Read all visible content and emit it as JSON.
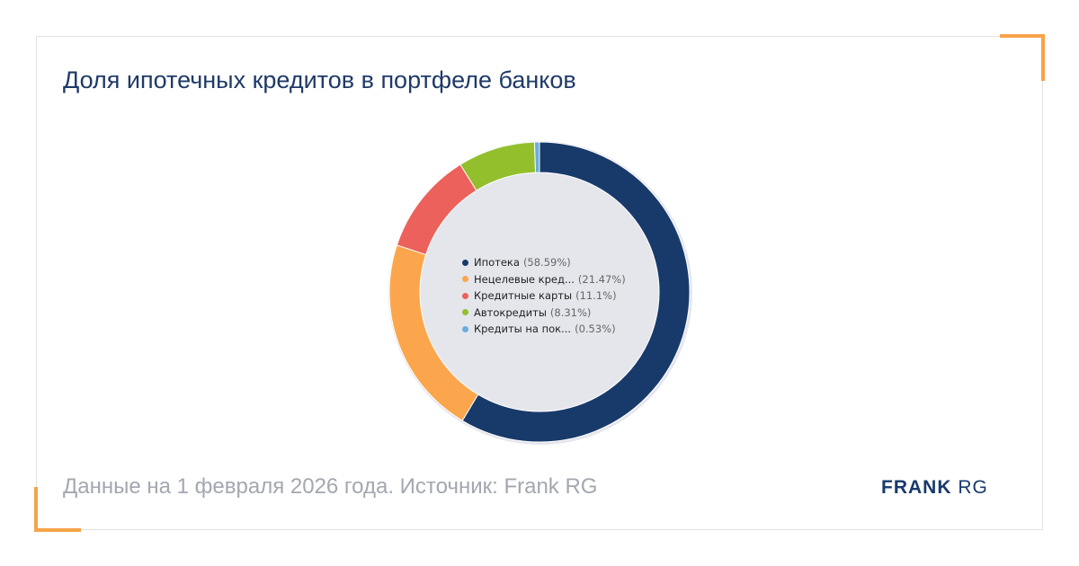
{
  "title": "Доля ипотечных кредитов в портфеле банков",
  "footer": "Данные на 1 февраля 2026 года. Источник: Frank RG",
  "logo": {
    "bold": "FRANK",
    "light": "RG"
  },
  "chart_data": {
    "type": "pie",
    "title": "Доля ипотечных кредитов в портфеле банков",
    "labels": [
      "Ипотека",
      "Нецелевые кред...",
      "Кредитные карты",
      "Автокредиты",
      "Кредиты на пок..."
    ],
    "values": [
      58.59,
      21.47,
      11.1,
      8.31,
      0.53
    ],
    "pct_labels": [
      "(58.59%)",
      "(21.47%)",
      "(11.1%)",
      "(8.31%)",
      "(0.53%)"
    ],
    "colors": [
      "#183a6b",
      "#fba64c",
      "#ec615b",
      "#93bf2d",
      "#6aaedc"
    ],
    "legend_position": "center"
  }
}
